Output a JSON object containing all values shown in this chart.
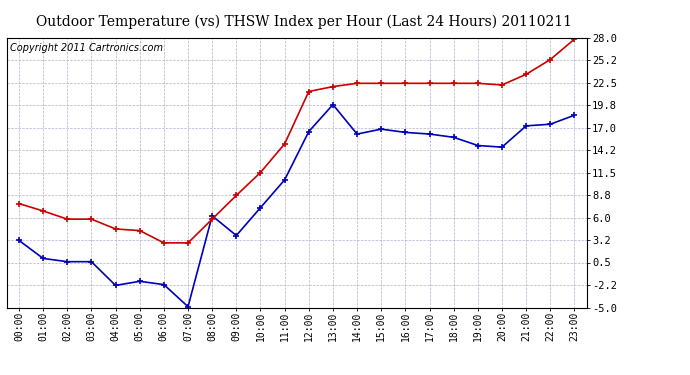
{
  "title": "Outdoor Temperature (vs) THSW Index per Hour (Last 24 Hours) 20110211",
  "copyright": "Copyright 2011 Cartronics.com",
  "hours": [
    "00:00",
    "01:00",
    "02:00",
    "03:00",
    "04:00",
    "05:00",
    "06:00",
    "07:00",
    "08:00",
    "09:00",
    "10:00",
    "11:00",
    "12:00",
    "13:00",
    "14:00",
    "15:00",
    "16:00",
    "17:00",
    "18:00",
    "19:00",
    "20:00",
    "21:00",
    "22:00",
    "23:00"
  ],
  "temp_blue": [
    3.2,
    1.0,
    0.6,
    0.6,
    -2.3,
    -1.8,
    -2.2,
    -4.9,
    6.2,
    3.8,
    7.2,
    10.6,
    16.5,
    19.8,
    16.2,
    16.8,
    16.4,
    16.2,
    15.8,
    14.8,
    14.6,
    17.2,
    17.4,
    18.5
  ],
  "thsw_red": [
    7.7,
    6.8,
    5.8,
    5.8,
    4.6,
    4.4,
    2.9,
    2.9,
    5.8,
    8.7,
    11.5,
    15.0,
    21.4,
    22.0,
    22.4,
    22.4,
    22.4,
    22.4,
    22.4,
    22.4,
    22.2,
    23.5,
    25.3,
    27.8
  ],
  "yticks": [
    -5.0,
    -2.2,
    0.5,
    3.2,
    6.0,
    8.8,
    11.5,
    14.2,
    17.0,
    19.8,
    22.5,
    25.2,
    28.0
  ],
  "ytick_labels": [
    "-5.0",
    "-2.2",
    "0.5",
    "3.2",
    "6.0",
    "8.8",
    "11.5",
    "14.2",
    "17.0",
    "19.8",
    "22.5",
    "25.2",
    "28.0"
  ],
  "ymin": -5.0,
  "ymax": 28.0,
  "blue_color": "#0000bb",
  "red_color": "#cc0000",
  "background_color": "#ffffff",
  "grid_color": "#aaaacc",
  "title_fontsize": 10,
  "copyright_fontsize": 7,
  "tick_fontsize": 7,
  "ytick_fontsize": 7.5
}
